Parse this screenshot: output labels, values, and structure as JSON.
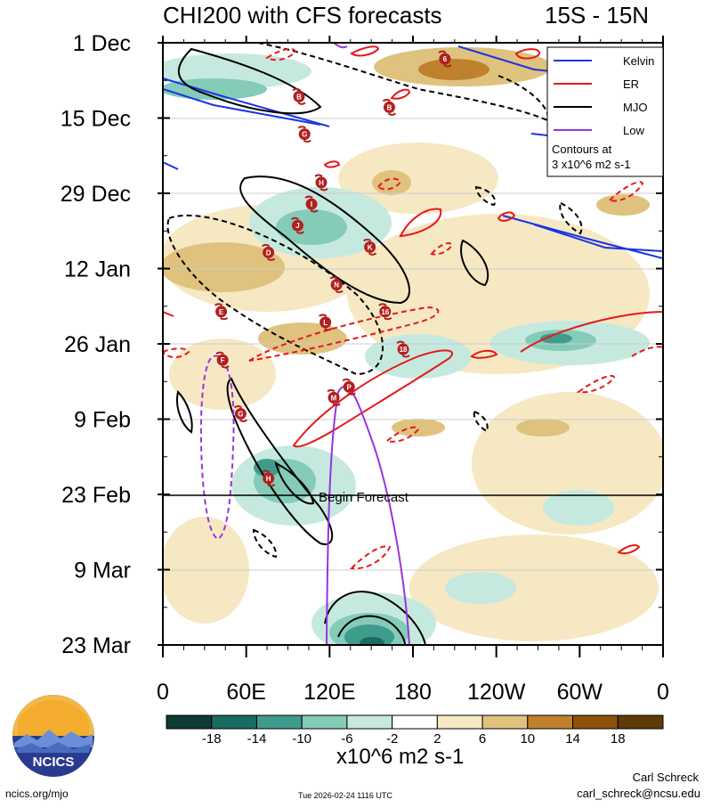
{
  "title_left": "CHI200 with CFS forecasts",
  "title_right": "15S - 15N",
  "colorbar_unit": "x10^6 m2 s-1",
  "logo_text": "NCICS",
  "logo_url": "ncics.org/mjo",
  "timestamp": "Tue 2026-02-24 1116 UTC",
  "author": "Carl Schreck",
  "email": "carl_schreck@ncsu.edu",
  "begin_forecast_label": "Begin Forecast",
  "colors": {
    "kelvin": "#1a33e6",
    "er": "#e6191a",
    "mjo": "#000000",
    "low": "#9933dd",
    "storm_marker": "#b02020"
  },
  "chart_data": {
    "type": "heatmap",
    "variable": "CHI200",
    "x_tick_labels": [
      "0",
      "60E",
      "120E",
      "180",
      "120W",
      "60W",
      "0"
    ],
    "x_range_deg_east": [
      0,
      360
    ],
    "y_tick_labels": [
      "1 Dec",
      "15 Dec",
      "29 Dec",
      "12 Jan",
      "26 Jan",
      "9 Feb",
      "23 Feb",
      "9 Mar",
      "23 Mar"
    ],
    "y_range": [
      "1 Dec",
      "23 Mar"
    ],
    "begin_forecast_date": "23 Feb",
    "colorbar": {
      "tick_labels": [
        "-18",
        "-14",
        "-10",
        "-6",
        "-2",
        "2",
        "6",
        "10",
        "14",
        "18"
      ],
      "colors": [
        "#0d3b33",
        "#1c6b60",
        "#3f9c8c",
        "#84cbb8",
        "#c6e9df",
        "#ffffff",
        "#f6e8c3",
        "#dfc27d",
        "#bf812d",
        "#8c510a",
        "#5e3a08"
      ]
    },
    "legend": {
      "placement": "top-right",
      "entries": [
        {
          "name": "Kelvin",
          "color": "#1a33e6"
        },
        {
          "name": "ER",
          "color": "#e6191a"
        },
        {
          "name": "MJO",
          "color": "#000000"
        },
        {
          "name": "Low",
          "color": "#9933dd"
        }
      ],
      "note_lines": [
        "Contours at",
        "3 x10^6 m2 s-1"
      ]
    },
    "storm_markers": [
      {
        "label": "B",
        "lon": 98,
        "date": "11 Dec"
      },
      {
        "label": "G",
        "lon": 102,
        "date": "18 Dec"
      },
      {
        "label": "B",
        "lon": 163,
        "date": "13 Dec"
      },
      {
        "label": "6",
        "lon": 203,
        "date": "4 Dec"
      },
      {
        "label": "H",
        "lon": 114,
        "date": "27 Dec"
      },
      {
        "label": "I",
        "lon": 107,
        "date": "31 Dec"
      },
      {
        "label": "J",
        "lon": 97,
        "date": "4 Jan"
      },
      {
        "label": "D",
        "lon": 76,
        "date": "9 Jan"
      },
      {
        "label": "K",
        "lon": 149,
        "date": "8 Jan"
      },
      {
        "label": "N",
        "lon": 125,
        "date": "15 Jan"
      },
      {
        "label": "E",
        "lon": 42,
        "date": "20 Jan"
      },
      {
        "label": "L",
        "lon": 117,
        "date": "22 Jan"
      },
      {
        "label": "16",
        "lon": 160,
        "date": "20 Jan"
      },
      {
        "label": "18",
        "lon": 173,
        "date": "27 Jan"
      },
      {
        "label": "F",
        "lon": 43,
        "date": "29 Jan"
      },
      {
        "label": "P",
        "lon": 134,
        "date": "3 Feb"
      },
      {
        "label": "M",
        "lon": 123,
        "date": "5 Feb"
      },
      {
        "label": "G",
        "lon": 56,
        "date": "8 Feb"
      },
      {
        "label": "H",
        "lon": 76,
        "date": "20 Feb"
      }
    ]
  }
}
